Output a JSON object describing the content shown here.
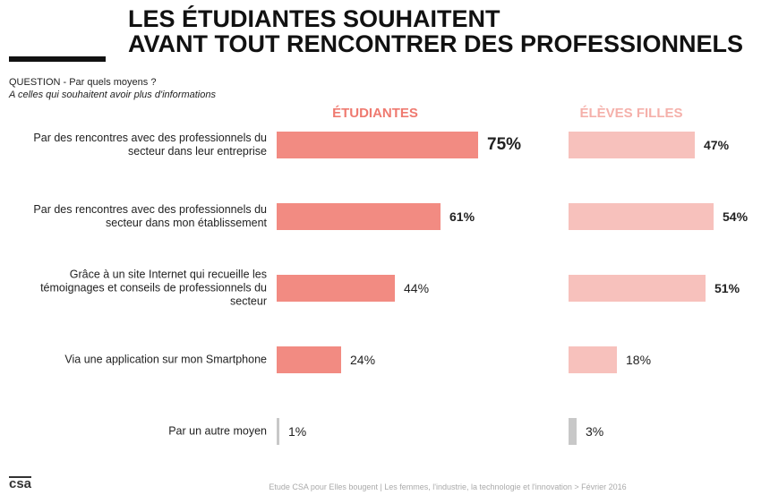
{
  "chart_data": {
    "type": "bar",
    "orientation": "horizontal",
    "title": [
      "LES ÉTUDIANTES SOUHAITENT",
      "AVANT TOUT RENCONTRER DES PROFESSIONNELS"
    ],
    "question": "QUESTION - Par quels moyens ?",
    "subquestion": "A celles qui souhaitent avoir plus d'informations",
    "categories": [
      "Par des rencontres avec des professionnels du secteur dans leur entreprise",
      "Par des rencontres avec des professionnels du secteur dans mon établissement",
      "Grâce à un site Internet qui recueille les témoignages et conseils de professionnels du secteur",
      "Via une application sur mon Smartphone",
      "Par un autre moyen"
    ],
    "series": [
      {
        "name": "ÉTUDIANTES",
        "color": "#f28b82",
        "name_color": "#ef7a70",
        "colors": [
          "#f28b82",
          "#f28b82",
          "#f28b82",
          "#f28b82",
          "#c8c8c8"
        ],
        "values": [
          75,
          61,
          44,
          24,
          1
        ],
        "value_labels": [
          "75%",
          "61%",
          "44%",
          "24%",
          "1%"
        ],
        "bold": [
          true,
          true,
          false,
          false,
          false
        ]
      },
      {
        "name": "ÉLÈVES FILLES",
        "color": "#f7c1bc",
        "name_color": "#f5b0aa",
        "colors": [
          "#f7c1bc",
          "#f7c1bc",
          "#f7c1bc",
          "#f7c1bc",
          "#c8c8c8"
        ],
        "values": [
          47,
          54,
          51,
          18,
          3
        ],
        "value_labels": [
          "47%",
          "54%",
          "51%",
          "18%",
          "3%"
        ],
        "bold": [
          true,
          true,
          true,
          false,
          false
        ]
      }
    ],
    "xlim": [
      0,
      100
    ]
  },
  "footer": "Etude CSA pour Elles bougent | Les femmes, l'industrie, la technologie et l'innovation > Février 2016",
  "logo": "csa"
}
